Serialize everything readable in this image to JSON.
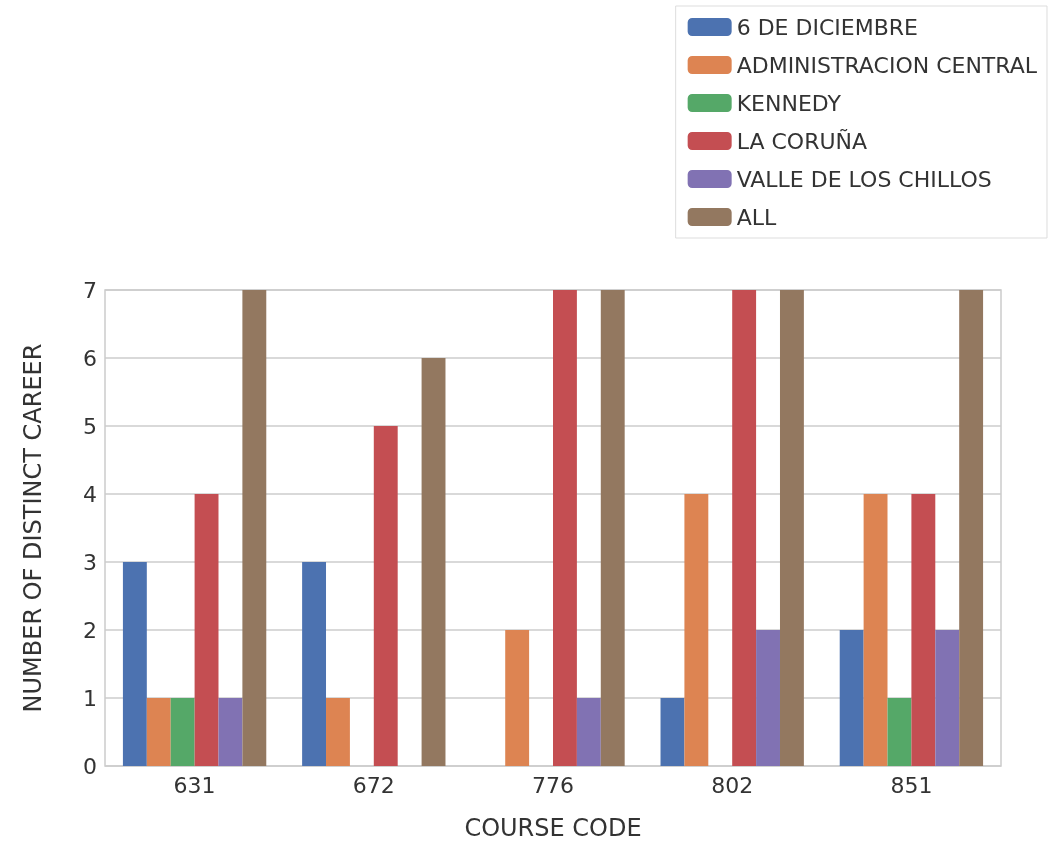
{
  "chart_data": {
    "type": "bar",
    "xlabel": "COURSE CODE",
    "ylabel": "NUMBER OF DISTINCT CAREER",
    "categories": [
      "631",
      "672",
      "776",
      "802",
      "851"
    ],
    "series": [
      {
        "name": "6 DE DICIEMBRE",
        "color": "#4c72b0",
        "values": [
          3,
          3,
          null,
          1,
          2
        ]
      },
      {
        "name": "ADMINISTRACION CENTRAL",
        "color": "#dd8452",
        "values": [
          1,
          1,
          2,
          4,
          4
        ]
      },
      {
        "name": "KENNEDY",
        "color": "#55a868",
        "values": [
          1,
          null,
          null,
          null,
          1
        ]
      },
      {
        "name": "LA CORUÑA",
        "color": "#c44e52",
        "values": [
          4,
          5,
          7,
          7,
          4
        ]
      },
      {
        "name": "VALLE DE LOS CHILLOS",
        "color": "#8172b3",
        "values": [
          1,
          null,
          1,
          2,
          2
        ]
      },
      {
        "name": "ALL",
        "color": "#937860",
        "values": [
          7,
          6,
          7,
          7,
          7
        ]
      }
    ],
    "ylim": [
      0,
      7
    ],
    "yticks": [
      0,
      1,
      2,
      3,
      4,
      5,
      6,
      7
    ],
    "grid": "y",
    "legend": "top right"
  }
}
